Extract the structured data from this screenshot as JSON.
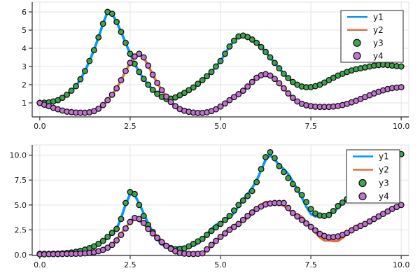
{
  "figure": {
    "background": "#FFFFFF"
  },
  "palette": {
    "y1": "#009AFA",
    "y2": "#E36F47",
    "y3": "#3EA44E",
    "y4": "#C371D2",
    "grid": "#E3E3E3",
    "spine": "#2E2E2E",
    "marker_stroke": "#111111",
    "legend_border": "#4A4A4A",
    "legend_bg": "#FFFFFF"
  },
  "x_values": [
    0,
    0.125,
    0.25,
    0.375,
    0.5,
    0.625,
    0.75,
    0.875,
    1,
    1.125,
    1.25,
    1.375,
    1.5,
    1.625,
    1.75,
    1.875,
    2,
    2.125,
    2.25,
    2.375,
    2.5,
    2.625,
    2.75,
    2.875,
    3,
    3.125,
    3.25,
    3.375,
    3.5,
    3.625,
    3.75,
    3.875,
    4,
    4.125,
    4.25,
    4.375,
    4.5,
    4.625,
    4.75,
    4.875,
    5,
    5.125,
    5.25,
    5.375,
    5.5,
    5.625,
    5.75,
    5.875,
    6,
    6.125,
    6.25,
    6.375,
    6.5,
    6.625,
    6.75,
    6.875,
    7,
    7.125,
    7.25,
    7.375,
    7.5,
    7.625,
    7.75,
    7.875,
    8,
    8.125,
    8.25,
    8.375,
    8.5,
    8.625,
    8.75,
    8.875,
    9,
    9.125,
    9.25,
    9.375,
    9.5,
    9.625,
    9.75,
    9.875,
    10
  ],
  "chart_data": [
    {
      "type": "line+scatter",
      "subplot": "top",
      "title": "",
      "xlabel": "",
      "ylabel": "",
      "xlim": [
        -0.21,
        10.21
      ],
      "ylim": [
        0.23,
        6.54
      ],
      "grid": true,
      "xticks": {
        "values": [
          0,
          2.5,
          5,
          7.5,
          10
        ],
        "labels": [
          "0.0",
          "2.5",
          "5.0",
          "7.5",
          "10.0"
        ]
      },
      "yticks": {
        "values": [
          1,
          2,
          3,
          4,
          5,
          6
        ],
        "labels": [
          "1",
          "2",
          "3",
          "4",
          "5",
          "6"
        ]
      },
      "legend": {
        "position": "top-right",
        "entries": [
          {
            "label": "y1",
            "type": "line",
            "color": "#009AFA"
          },
          {
            "label": "y2",
            "type": "line",
            "color": "#E36F47"
          },
          {
            "label": "y3",
            "type": "scatter",
            "color": "#3EA44E"
          },
          {
            "label": "y4",
            "type": "scatter",
            "color": "#C371D2"
          }
        ]
      },
      "series": [
        {
          "name": "y1",
          "type": "line",
          "color": "#009AFA",
          "values": [
            1.0,
            1.01,
            1.03,
            1.08,
            1.15,
            1.28,
            1.45,
            1.67,
            1.92,
            2.3,
            2.75,
            3.3,
            3.9,
            4.6,
            5.35,
            6.0,
            5.9,
            5.45,
            4.9,
            4.3,
            3.7,
            3.15,
            2.7,
            2.32,
            2.0,
            1.72,
            1.5,
            1.33,
            1.22,
            1.23,
            1.3,
            1.42,
            1.55,
            1.7,
            1.85,
            2.05,
            2.25,
            2.47,
            2.7,
            3.0,
            3.3,
            3.7,
            4.1,
            4.42,
            4.65,
            4.7,
            4.62,
            4.48,
            4.3,
            4.07,
            3.8,
            3.5,
            3.2,
            2.9,
            2.6,
            2.36,
            2.15,
            2.0,
            1.9,
            1.86,
            1.87,
            1.92,
            2.0,
            2.12,
            2.25,
            2.38,
            2.5,
            2.6,
            2.7,
            2.78,
            2.85,
            2.9,
            2.95,
            3.0,
            3.05,
            3.08,
            3.1,
            3.08,
            3.05,
            3.02,
            3.0
          ]
        },
        {
          "name": "y2",
          "type": "line",
          "color": "#E36F47",
          "values": [
            1.0,
            0.9,
            0.82,
            0.73,
            0.65,
            0.58,
            0.52,
            0.49,
            0.47,
            0.46,
            0.46,
            0.48,
            0.55,
            0.68,
            0.88,
            1.15,
            1.45,
            1.8,
            2.25,
            2.75,
            3.2,
            3.55,
            3.7,
            3.5,
            3.05,
            2.55,
            2.1,
            1.7,
            1.35,
            1.05,
            0.82,
            0.66,
            0.57,
            0.51,
            0.47,
            0.45,
            0.45,
            0.48,
            0.55,
            0.65,
            0.8,
            0.97,
            1.15,
            1.32,
            1.48,
            1.67,
            1.9,
            2.15,
            2.38,
            2.52,
            2.58,
            2.5,
            2.32,
            2.08,
            1.8,
            1.52,
            1.28,
            1.08,
            0.95,
            0.87,
            0.82,
            0.79,
            0.78,
            0.78,
            0.78,
            0.8,
            0.83,
            0.88,
            0.95,
            1.03,
            1.12,
            1.22,
            1.32,
            1.42,
            1.52,
            1.61,
            1.69,
            1.76,
            1.81,
            1.84,
            1.86
          ]
        },
        {
          "name": "y3",
          "type": "scatter",
          "color": "#3EA44E",
          "values": [
            1.0,
            1.01,
            1.03,
            1.08,
            1.15,
            1.28,
            1.45,
            1.67,
            1.92,
            2.3,
            2.75,
            3.3,
            3.9,
            4.6,
            5.35,
            6.0,
            5.9,
            5.45,
            4.9,
            4.3,
            3.7,
            3.15,
            2.7,
            2.32,
            2.0,
            1.72,
            1.5,
            1.33,
            1.22,
            1.23,
            1.3,
            1.42,
            1.55,
            1.7,
            1.85,
            2.05,
            2.25,
            2.47,
            2.7,
            3.0,
            3.3,
            3.7,
            4.1,
            4.42,
            4.65,
            4.7,
            4.62,
            4.48,
            4.3,
            4.07,
            3.8,
            3.5,
            3.2,
            2.9,
            2.6,
            2.36,
            2.15,
            2.0,
            1.9,
            1.86,
            1.87,
            1.92,
            2.0,
            2.12,
            2.25,
            2.38,
            2.5,
            2.6,
            2.7,
            2.78,
            2.85,
            2.9,
            2.95,
            3.0,
            3.05,
            3.08,
            3.1,
            3.08,
            3.05,
            3.02,
            3.0
          ]
        },
        {
          "name": "y4",
          "type": "scatter",
          "color": "#C371D2",
          "values": [
            1.0,
            0.9,
            0.82,
            0.73,
            0.65,
            0.58,
            0.52,
            0.49,
            0.47,
            0.46,
            0.46,
            0.48,
            0.55,
            0.68,
            0.88,
            1.15,
            1.45,
            1.8,
            2.25,
            2.75,
            3.2,
            3.55,
            3.7,
            3.5,
            3.05,
            2.55,
            2.1,
            1.7,
            1.35,
            1.05,
            0.82,
            0.66,
            0.57,
            0.51,
            0.47,
            0.45,
            0.45,
            0.48,
            0.55,
            0.65,
            0.8,
            0.97,
            1.15,
            1.32,
            1.48,
            1.67,
            1.9,
            2.15,
            2.38,
            2.52,
            2.58,
            2.5,
            2.32,
            2.08,
            1.8,
            1.52,
            1.28,
            1.08,
            0.95,
            0.87,
            0.82,
            0.79,
            0.78,
            0.78,
            0.78,
            0.8,
            0.83,
            0.88,
            0.95,
            1.03,
            1.12,
            1.22,
            1.32,
            1.42,
            1.52,
            1.61,
            1.69,
            1.76,
            1.81,
            1.84,
            1.86
          ]
        }
      ]
    },
    {
      "type": "line+scatter",
      "subplot": "bottom",
      "title": "",
      "xlabel": "",
      "ylabel": "",
      "xlim": [
        -0.21,
        10.21
      ],
      "ylim": [
        -0.07,
        11.03
      ],
      "grid": true,
      "xticks": {
        "values": [
          0,
          2.5,
          5,
          7.5,
          10
        ],
        "labels": [
          "0.0",
          "2.5",
          "5.0",
          "7.5",
          "10.0"
        ]
      },
      "yticks": {
        "values": [
          0,
          2.5,
          5,
          7.5,
          10
        ],
        "labels": [
          "0.0",
          "2.5",
          "5.0",
          "7.5",
          "10.0"
        ]
      },
      "legend": {
        "position": "top-right",
        "entries": [
          {
            "label": "y1",
            "type": "line",
            "color": "#009AFA"
          },
          {
            "label": "y2",
            "type": "line",
            "color": "#E36F47"
          },
          {
            "label": "y3",
            "type": "scatter",
            "color": "#3EA44E"
          },
          {
            "label": "y4",
            "type": "scatter",
            "color": "#C371D2"
          }
        ]
      },
      "series": [
        {
          "name": "y1",
          "type": "line",
          "color": "#009AFA",
          "values": [
            0.12,
            0.13,
            0.12,
            0.11,
            0.1,
            0.11,
            0.16,
            0.23,
            0.33,
            0.46,
            0.61,
            0.77,
            0.92,
            1.12,
            1.36,
            1.72,
            2.14,
            2.6,
            3.7,
            5.05,
            6.1,
            6.0,
            5.15,
            4.15,
            3.15,
            2.3,
            1.58,
            1.07,
            0.8,
            0.73,
            0.7,
            0.78,
            0.75,
            0.8,
            0.95,
            1.15,
            1.5,
            2.08,
            2.6,
            3.0,
            3.22,
            3.45,
            3.72,
            4.2,
            4.88,
            5.5,
            6.1,
            6.7,
            7.45,
            8.5,
            9.55,
            10.0,
            9.55,
            9.0,
            8.6,
            8.1,
            7.35,
            6.55,
            5.75,
            4.85,
            4.1,
            3.85,
            3.9,
            4.05,
            4.05,
            4.3,
            4.7,
            5.15,
            5.65,
            6.15,
            6.6,
            6.95,
            7.25,
            7.55,
            7.9,
            8.4,
            8.95,
            9.45,
            9.7,
            9.9,
            10.1
          ]
        },
        {
          "name": "y2",
          "type": "line",
          "color": "#E36F47",
          "values": [
            0.06,
            0.07,
            0.09,
            0.08,
            0.07,
            0.06,
            0.06,
            0.09,
            0.12,
            0.16,
            0.21,
            0.25,
            0.27,
            0.34,
            0.45,
            0.68,
            1.0,
            1.51,
            2.12,
            2.73,
            3.3,
            3.6,
            3.42,
            3.08,
            2.6,
            2.25,
            1.88,
            1.4,
            0.92,
            0.52,
            0.21,
            0.12,
            0.14,
            0.19,
            0.24,
            0.2,
            0.15,
            0.45,
            0.84,
            1.3,
            1.8,
            2.27,
            2.7,
            2.92,
            3.1,
            3.38,
            3.7,
            4.13,
            4.6,
            5.0,
            5.3,
            5.3,
            5.2,
            5.05,
            4.95,
            4.55,
            4.2,
            4.03,
            3.8,
            3.33,
            2.8,
            2.25,
            1.75,
            1.45,
            1.45,
            1.38,
            1.4,
            1.7,
            2.1,
            2.55,
            2.9,
            3.02,
            3.1,
            3.25,
            3.45,
            3.75,
            4.1,
            4.43,
            4.72,
            4.88,
            5.02
          ]
        },
        {
          "name": "y3",
          "type": "scatter",
          "color": "#3EA44E",
          "values": [
            0.1,
            0.1,
            0.1,
            0.11,
            0.12,
            0.14,
            0.18,
            0.23,
            0.3,
            0.4,
            0.52,
            0.67,
            0.85,
            1.1,
            1.4,
            1.8,
            2.2,
            2.6,
            3.6,
            5.2,
            6.3,
            6.1,
            5.0,
            3.9,
            3.0,
            2.3,
            1.7,
            1.25,
            0.9,
            0.68,
            0.55,
            0.58,
            0.65,
            0.85,
            1.1,
            1.35,
            1.6,
            2.0,
            2.4,
            2.75,
            3.1,
            3.5,
            3.9,
            4.45,
            5.0,
            5.45,
            5.9,
            6.4,
            7.3,
            8.6,
            9.8,
            10.3,
            9.7,
            8.9,
            8.3,
            7.7,
            7.1,
            6.55,
            6.0,
            5.3,
            4.6,
            4.15,
            3.95,
            3.9,
            4.0,
            4.4,
            4.9,
            5.25,
            5.6,
            5.95,
            6.3,
            6.75,
            7.2,
            7.65,
            8.1,
            8.5,
            8.9,
            9.3,
            9.6,
            9.85,
            10.1
          ]
        },
        {
          "name": "y4",
          "type": "scatter",
          "color": "#C371D2",
          "values": [
            0.05,
            0.05,
            0.06,
            0.06,
            0.07,
            0.08,
            0.09,
            0.1,
            0.1,
            0.12,
            0.15,
            0.2,
            0.25,
            0.36,
            0.5,
            0.72,
            1.0,
            1.45,
            2.0,
            2.65,
            3.3,
            3.7,
            3.6,
            3.2,
            2.6,
            2.15,
            1.7,
            1.28,
            0.9,
            0.6,
            0.35,
            0.2,
            0.12,
            0.09,
            0.08,
            0.1,
            0.15,
            0.55,
            1.0,
            1.4,
            1.8,
            2.15,
            2.5,
            2.8,
            3.1,
            3.5,
            3.9,
            4.25,
            4.6,
            4.85,
            5.05,
            5.15,
            5.2,
            5.2,
            5.2,
            4.7,
            4.2,
            3.85,
            3.5,
            3.15,
            2.8,
            2.45,
            2.1,
            1.9,
            1.75,
            1.78,
            1.85,
            2.0,
            2.2,
            2.45,
            2.7,
            2.9,
            3.1,
            3.35,
            3.6,
            3.85,
            4.1,
            4.35,
            4.6,
            4.8,
            5.0
          ]
        }
      ]
    }
  ]
}
